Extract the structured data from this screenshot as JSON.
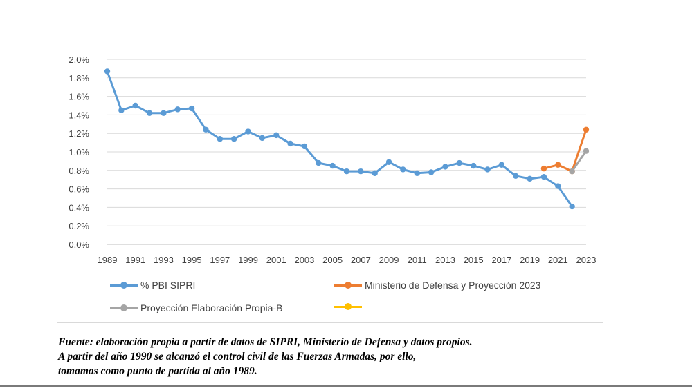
{
  "chart_data": {
    "type": "line",
    "title": "",
    "xlabel": "",
    "ylabel": "",
    "ylim": [
      0,
      0.02
    ],
    "y_tick_labels": [
      "0.0%",
      "0.2%",
      "0.4%",
      "0.6%",
      "0.8%",
      "1.0%",
      "1.2%",
      "1.4%",
      "1.6%",
      "1.8%",
      "2.0%"
    ],
    "x_tick_labels": [
      "1989",
      "1991",
      "1993",
      "1995",
      "1997",
      "1999",
      "2001",
      "2003",
      "2005",
      "2007",
      "2009",
      "2011",
      "2013",
      "2015",
      "2017",
      "2019",
      "2021",
      "2023"
    ],
    "x_range": [
      1989,
      2023
    ],
    "grid": true,
    "series": [
      {
        "name": "% PBI SIPRI",
        "color": "#5b9bd5",
        "x": [
          1989,
          1990,
          1991,
          1992,
          1993,
          1994,
          1995,
          1996,
          1997,
          1998,
          1999,
          2000,
          2001,
          2002,
          2003,
          2004,
          2005,
          2006,
          2007,
          2008,
          2009,
          2010,
          2011,
          2012,
          2013,
          2014,
          2015,
          2016,
          2017,
          2018,
          2019,
          2020,
          2021,
          2022
        ],
        "values": [
          0.0187,
          0.0145,
          0.015,
          0.0142,
          0.0142,
          0.0146,
          0.0147,
          0.0124,
          0.0114,
          0.0114,
          0.0122,
          0.0115,
          0.0118,
          0.0109,
          0.0106,
          0.0088,
          0.0085,
          0.0079,
          0.0079,
          0.0077,
          0.0089,
          0.0081,
          0.0077,
          0.0078,
          0.0084,
          0.0088,
          0.0085,
          0.0081,
          0.0086,
          0.0074,
          0.0071,
          0.0073,
          0.0063,
          0.0041
        ]
      },
      {
        "name": "Ministerio de Defensa y Proyección 2023",
        "color": "#ed7d31",
        "x": [
          2020,
          2021,
          2022,
          2023
        ],
        "values": [
          0.0082,
          0.0086,
          0.0079,
          0.0124
        ]
      },
      {
        "name": "Proyección Elaboración Propia-B",
        "color": "#a5a5a5",
        "x": [
          2022,
          2023
        ],
        "values": [
          0.0079,
          0.0101
        ]
      },
      {
        "name": "",
        "color": "#ffc000",
        "x": [],
        "values": []
      }
    ],
    "legend_position": "bottom"
  },
  "caption": {
    "line1": "Fuente: elaboración propia a partir de datos de SIPRI, Ministerio de Defensa y datos propios.",
    "line2": "A partir del año 1990 se alcanzó el control civil de las Fuerzas Armadas, por ello,",
    "line3": "tomamos como punto de partida al año 1989."
  }
}
